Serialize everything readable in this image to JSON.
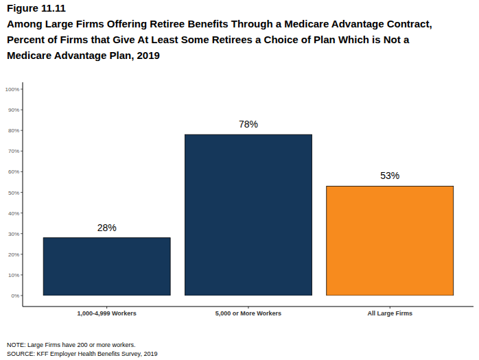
{
  "chart_data": {
    "type": "bar",
    "figure_label": "Figure 11.11",
    "title": [
      "Among Large Firms Offering Retiree Benefits Through a Medicare Advantage Contract,",
      "Percent of Firms that Give At Least Some Retirees a Choice of Plan Which is Not a",
      "Medicare Advantage Plan, 2019"
    ],
    "categories": [
      "1,000-4,999 Workers",
      "5,000 or More Workers",
      "All Large Firms"
    ],
    "values": [
      28,
      78,
      53
    ],
    "value_labels": [
      "28%",
      "78%",
      "53%"
    ],
    "colors": [
      "#15375a",
      "#15375a",
      "#f78b1e"
    ],
    "data_labels": true,
    "grid": false,
    "ylim": [
      0,
      100
    ],
    "yticks": [
      {
        "value": 0,
        "label": "0%"
      },
      {
        "value": 10,
        "label": "10%"
      },
      {
        "value": 20,
        "label": "20%"
      },
      {
        "value": 30,
        "label": "30%"
      },
      {
        "value": 40,
        "label": "40%"
      },
      {
        "value": 50,
        "label": "50%"
      },
      {
        "value": 60,
        "label": "60%"
      },
      {
        "value": 70,
        "label": "70%"
      },
      {
        "value": 80,
        "label": "80%"
      },
      {
        "value": 90,
        "label": "90%"
      },
      {
        "value": 100,
        "label": "100%"
      }
    ],
    "notes": [
      "NOTE: Large Firms have 200 or more workers.",
      "SOURCE: KFF Employer Health Benefits Survey, 2019"
    ]
  }
}
